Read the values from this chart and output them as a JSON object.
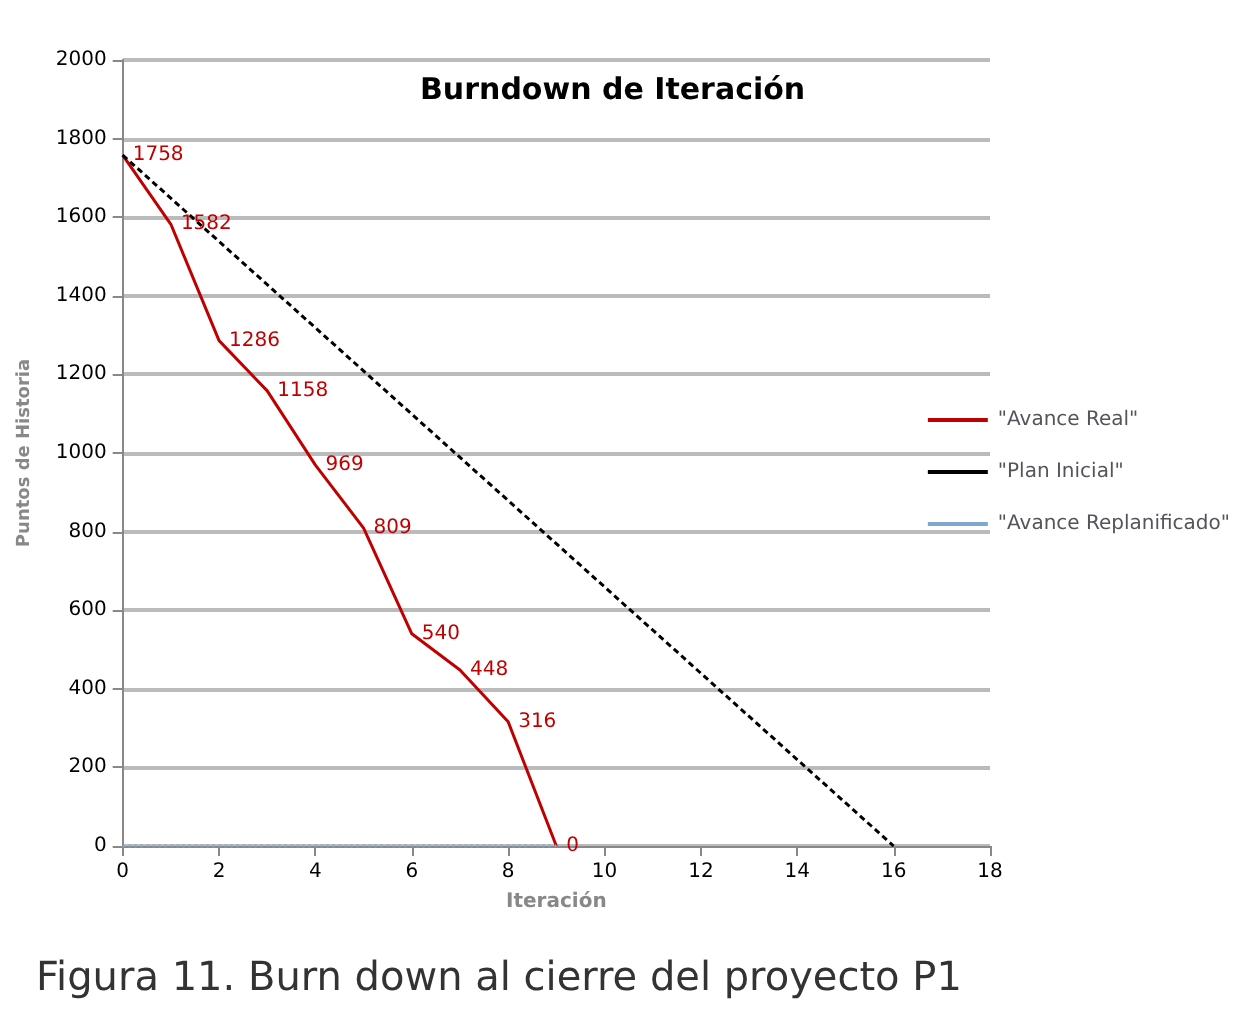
{
  "chart_data": {
    "type": "line",
    "title": "Burndown de Iteración",
    "xlabel": "Iteración",
    "ylabel": "Puntos de Historia",
    "annotations": [
      "Figura 11. Burn down al cierre del proyecto P1"
    ],
    "series": [
      {
        "name": "\"Avance Real\"",
        "color": "#c00000",
        "line_style": "solid",
        "x": [
          0,
          1,
          2,
          3,
          4,
          5,
          6,
          7,
          8,
          9
        ],
        "values": [
          1758,
          1582,
          1286,
          1158,
          969,
          809,
          540,
          448,
          316,
          0
        ],
        "value_labels": [
          "1758",
          "1582",
          "1286",
          "1158",
          "969",
          "809",
          "540",
          "448",
          "316",
          "0"
        ]
      },
      {
        "name": "\"Plan Inicial\"",
        "color": "#000000",
        "line_style": "dashed",
        "x": [
          0,
          16
        ],
        "values": [
          1758,
          0
        ]
      },
      {
        "name": "\"Avance Replanificado\"",
        "color": "#7fa7d0",
        "line_style": "dotted",
        "x": [
          0,
          9
        ],
        "values": [
          0,
          0
        ]
      }
    ],
    "xlim": [
      0,
      18
    ],
    "xticks": [
      0,
      2,
      4,
      6,
      8,
      10,
      12,
      14,
      16,
      18
    ],
    "ylim": [
      0,
      2000
    ],
    "yticks": [
      0,
      200,
      400,
      600,
      800,
      1000,
      1200,
      1400,
      1600,
      1800,
      2000
    ],
    "grid": "y",
    "legend": "right",
    "marker": "none"
  }
}
